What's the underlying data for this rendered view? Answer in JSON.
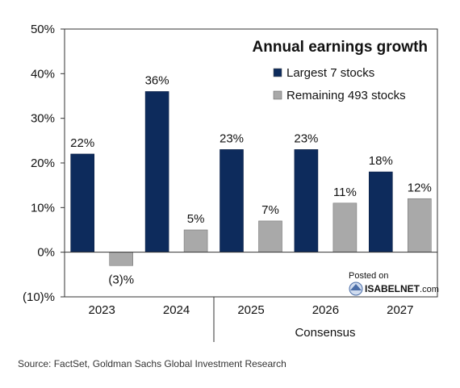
{
  "chart_data": {
    "type": "bar",
    "title": "Annual earnings growth",
    "categories": [
      "2023",
      "2024",
      "2025",
      "2026",
      "2027"
    ],
    "series": [
      {
        "name": "Largest 7 stocks",
        "color": "#0d2b5c",
        "values": [
          22,
          36,
          23,
          23,
          18
        ],
        "labels": [
          "22%",
          "36%",
          "23%",
          "23%",
          "18%"
        ]
      },
      {
        "name": "Remaining 493 stocks",
        "color": "#a9a9a9",
        "values": [
          -3,
          5,
          7,
          11,
          12
        ],
        "labels": [
          "(3)%",
          "5%",
          "7%",
          "11%",
          "12%"
        ]
      }
    ],
    "ylim": [
      -10,
      50
    ],
    "yticks": [
      {
        "value": 50,
        "label": "50%"
      },
      {
        "value": 40,
        "label": "40%"
      },
      {
        "value": 30,
        "label": "30%"
      },
      {
        "value": 20,
        "label": "20%"
      },
      {
        "value": 10,
        "label": "10%"
      },
      {
        "value": 0,
        "label": "0%"
      },
      {
        "value": -10,
        "label": "(10)%"
      }
    ],
    "group_label": "Consensus",
    "grid": false,
    "legend_position": "top-right"
  },
  "watermark": {
    "posted_on": "Posted on",
    "brand": "ISABELNET",
    "domain": ".com"
  },
  "source": "Source: FactSet, Goldman Sachs Global Investment Research"
}
